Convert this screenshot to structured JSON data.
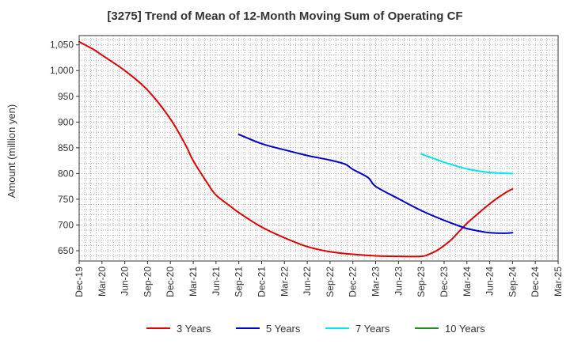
{
  "chart_data": {
    "type": "line",
    "title": "[3275]  Trend of Mean of 12-Month Moving Sum of Operating CF",
    "xlabel": "",
    "ylabel": "Amount (million yen)",
    "ylim": [
      630,
      1068
    ],
    "yticks": [
      650,
      700,
      750,
      800,
      850,
      900,
      950,
      1000,
      1050
    ],
    "ytick_labels": [
      "650",
      "700",
      "750",
      "800",
      "850",
      "900",
      "950",
      "1,000",
      "1,050"
    ],
    "x_categories": [
      "Dec-19",
      "Mar-20",
      "Jun-20",
      "Sep-20",
      "Dec-20",
      "Mar-21",
      "Jun-21",
      "Sep-21",
      "Dec-21",
      "Mar-22",
      "Jun-22",
      "Sep-22",
      "Dec-22",
      "Mar-23",
      "Jun-23",
      "Sep-23",
      "Dec-23",
      "Mar-24",
      "Jun-24",
      "Sep-24",
      "Dec-24",
      "Mar-25"
    ],
    "grid": true,
    "legend_position": "bottom",
    "series": [
      {
        "name": "3 Years",
        "color": "#e00000",
        "x_index": [
          0,
          0.67,
          1,
          2,
          3,
          4,
          4.67,
          5,
          5.67,
          6,
          6.67,
          7,
          8,
          9,
          10,
          11,
          12,
          13,
          14,
          15,
          15.33,
          15.67,
          16,
          16.33,
          16.67,
          17,
          17.33,
          17.67,
          18,
          18.33,
          18.67,
          19
        ],
        "values": [
          1056,
          1040,
          1030,
          1000,
          962,
          906,
          855,
          825,
          778,
          758,
          735,
          724,
          696,
          675,
          658,
          648,
          643,
          640,
          639,
          639,
          643,
          650,
          660,
          672,
          688,
          703,
          716,
          729,
          741,
          752,
          762,
          770
        ]
      },
      {
        "name": "5 Years",
        "color": "#0000cc",
        "x_index": [
          7,
          8,
          9,
          10,
          11,
          11.67,
          12,
          12.67,
          13,
          14,
          15,
          16,
          16.67,
          17,
          17.67,
          18,
          18.67,
          19
        ],
        "values": [
          876,
          858,
          846,
          835,
          826,
          818,
          808,
          792,
          775,
          751,
          728,
          709,
          698,
          693,
          687,
          685,
          684,
          685
        ]
      },
      {
        "name": "7 Years",
        "color": "#00e5ee",
        "x_index": [
          15,
          16,
          17,
          18,
          19
        ],
        "values": [
          838,
          822,
          809,
          802,
          800
        ]
      },
      {
        "name": "10 Years",
        "color": "#228b22",
        "x_index": [],
        "values": []
      }
    ]
  }
}
